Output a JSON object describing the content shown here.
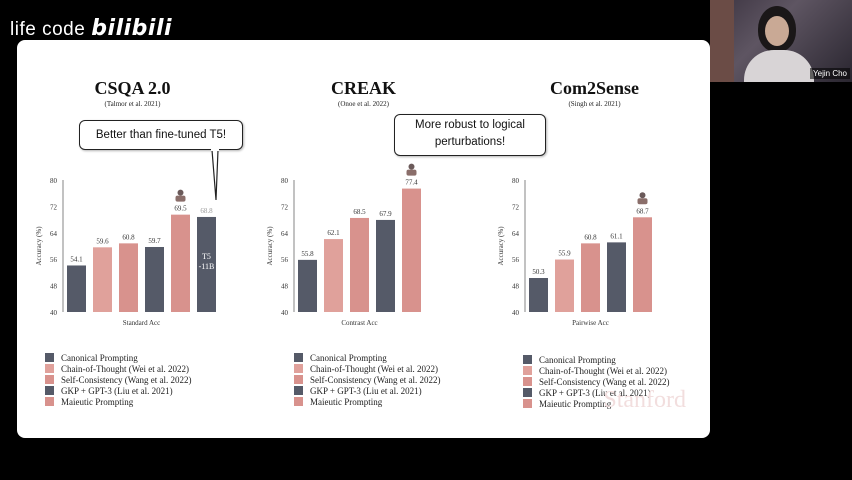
{
  "watermark": {
    "text": "life code",
    "logo": "bilibili"
  },
  "webcam": {
    "name": "Yejin Cho"
  },
  "colors": {
    "dark": "#555a68",
    "pink": "#d8928d",
    "pink_light": "#e3a39f"
  },
  "legend": [
    {
      "label": "Canonical Prompting",
      "color": "#555a68"
    },
    {
      "label": "Chain-of-Thought (Wei et al. 2022)",
      "color": "#e0a19b"
    },
    {
      "label": "Self-Consistency (Wang et al. 2022)",
      "color": "#d8928d"
    },
    {
      "label": "GKP + GPT-3 (Liu et al. 2021)",
      "color": "#555a68"
    },
    {
      "label": "Maieutic Prompting",
      "color": "#d8928d"
    }
  ],
  "panels": [
    {
      "title": "CSQA 2.0",
      "subtitle": "(Talmor et al. 2021)",
      "callout": "Better than fine-tuned T5!"
    },
    {
      "title": "CREAK",
      "subtitle": "(Onoe et al. 2022)",
      "callout": "More robust to logical perturbations!"
    },
    {
      "title": "Com2Sense",
      "subtitle": "(Singh et al. 2021)",
      "callout": ""
    }
  ],
  "stamp": "Stanford",
  "chart_data": [
    {
      "type": "bar",
      "title": "CSQA 2.0",
      "xlabel": "Standard Acc",
      "ylabel": "Accuracy (%)",
      "ylim": [
        40,
        80
      ],
      "yticks": [
        40,
        48,
        56,
        64,
        72,
        80
      ],
      "series": [
        {
          "name": "Canonical Prompting",
          "values": [
            54.1
          ]
        },
        {
          "name": "Chain-of-Thought (Wei et al. 2022)",
          "values": [
            59.6
          ]
        },
        {
          "name": "Self-Consistency (Wang et al. 2022)",
          "values": [
            60.8
          ]
        },
        {
          "name": "GKP + GPT-3 (Liu et al. 2021)",
          "values": [
            59.7
          ]
        },
        {
          "name": "Maieutic Prompting",
          "values": [
            69.5
          ]
        }
      ],
      "extra_bar": {
        "label": "T5\n-11B",
        "value": 68.8,
        "top_label": "68.8"
      },
      "values": [
        54.1,
        59.6,
        60.8,
        59.7,
        69.5
      ]
    },
    {
      "type": "bar",
      "title": "CREAK",
      "xlabel": "Contrast Acc",
      "ylabel": "Accuracy (%)",
      "ylim": [
        40,
        80
      ],
      "yticks": [
        40,
        48,
        56,
        64,
        72,
        80
      ],
      "values": [
        55.8,
        62.1,
        68.5,
        67.9,
        77.4
      ]
    },
    {
      "type": "bar",
      "title": "Com2Sense",
      "xlabel": "Pairwise Acc",
      "ylabel": "Accuracy (%)",
      "ylim": [
        40,
        80
      ],
      "yticks": [
        40,
        48,
        56,
        64,
        72,
        80
      ],
      "values": [
        50.3,
        55.9,
        60.8,
        61.1,
        68.7
      ]
    }
  ]
}
